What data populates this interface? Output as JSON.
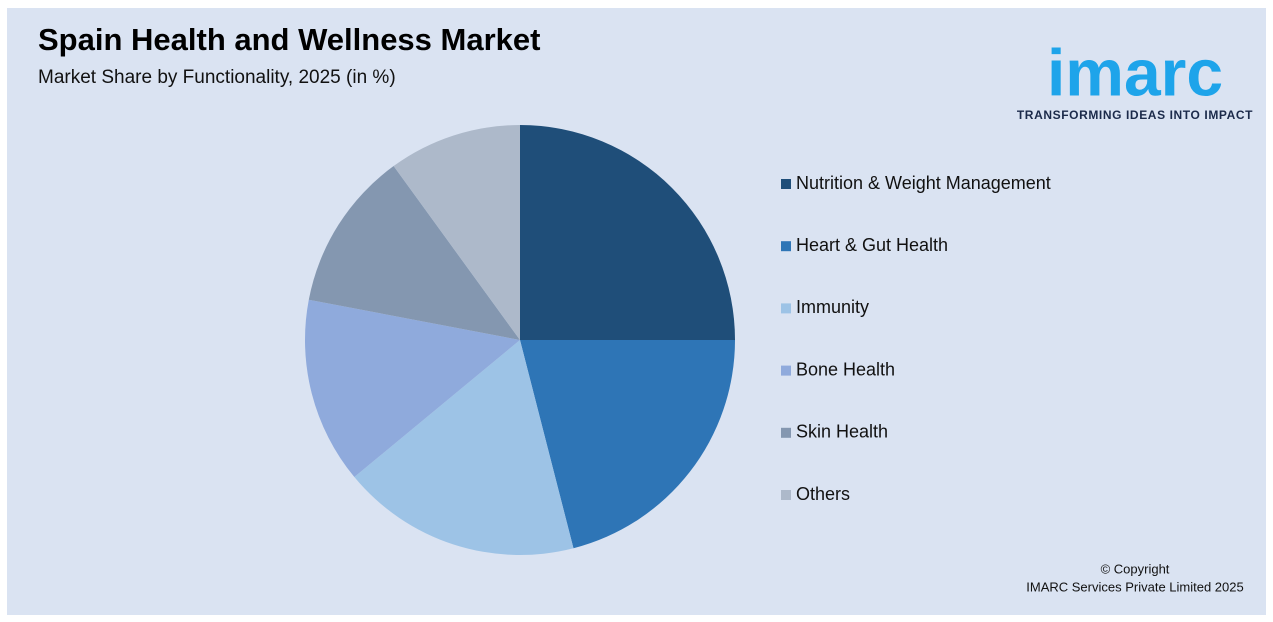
{
  "chart_data": {
    "type": "pie",
    "title": "Spain Health and Wellness Market",
    "subtitle": "Market Share by Functionality, 2025 (in %)",
    "categories": [
      "Nutrition & Weight Management",
      "Heart & Gut Health",
      "Immunity",
      "Bone Health",
      "Skin Health",
      "Others"
    ],
    "values": [
      25,
      21,
      18,
      14,
      12,
      10
    ],
    "colors": [
      "#1f4e79",
      "#2e75b6",
      "#9dc3e6",
      "#8faadc",
      "#8497b0",
      "#adb9ca"
    ],
    "legend": "right"
  },
  "logo": {
    "name": "imarc",
    "tagline": "TRANSFORMING IDEAS INTO IMPACT"
  },
  "copyright": {
    "line1": "© Copyright",
    "line2": "IMARC Services Private Limited 2025"
  }
}
